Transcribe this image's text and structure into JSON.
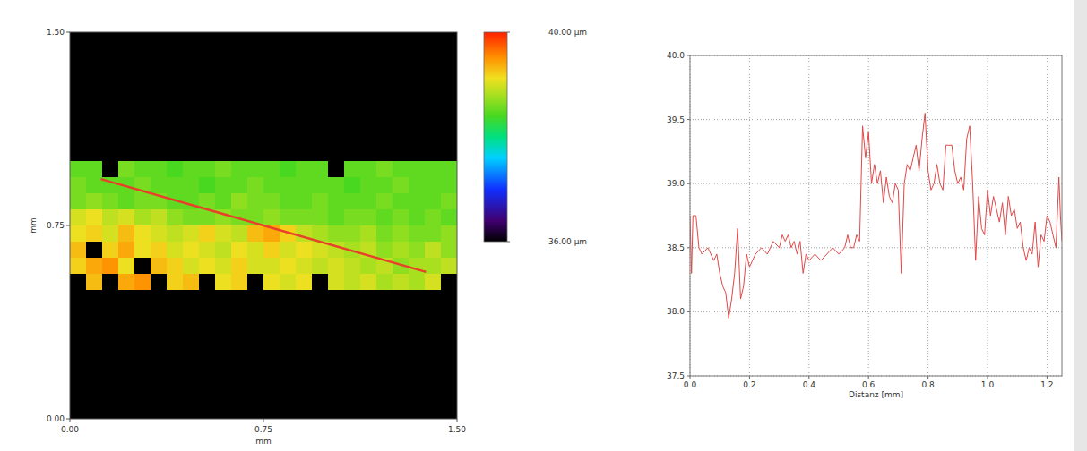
{
  "chart_data": [
    {
      "type": "heatmap",
      "xlabel": "mm",
      "ylabel": "mm",
      "xlim": [
        0,
        1.5
      ],
      "ylim": [
        0,
        1.5
      ],
      "xticks": [
        {
          "value": 0,
          "label": "0.00"
        },
        {
          "value": 0.75,
          "label": "0.75"
        },
        {
          "value": 1.5,
          "label": "1.50"
        }
      ],
      "yticks": [
        {
          "value": 0,
          "label": "0.00"
        },
        {
          "value": 0.75,
          "label": "0.75"
        },
        {
          "value": 1.5,
          "label": "1.50"
        }
      ],
      "cell_xlim": [
        0,
        1.5
      ],
      "cell_ylim": [
        1.0,
        0.5
      ],
      "cells": [
        [
          38.5,
          38.5,
          null,
          38.6,
          38.5,
          38.5,
          38.4,
          38.5,
          38.5,
          38.6,
          38.5,
          38.5,
          38.5,
          38.4,
          38.5,
          38.5,
          null,
          38.5,
          38.5,
          38.6,
          38.5,
          38.5,
          38.5,
          38.5
        ],
        [
          38.6,
          38.5,
          38.5,
          38.5,
          38.6,
          38.5,
          38.5,
          38.5,
          38.4,
          38.5,
          38.5,
          38.6,
          38.5,
          38.5,
          38.5,
          38.5,
          38.5,
          38.4,
          38.5,
          38.5,
          38.6,
          38.5,
          38.5,
          38.5
        ],
        [
          38.6,
          38.7,
          38.6,
          38.5,
          38.6,
          38.6,
          38.5,
          38.5,
          38.6,
          38.5,
          38.7,
          38.6,
          38.6,
          38.5,
          38.5,
          38.6,
          38.5,
          38.5,
          38.5,
          38.6,
          38.5,
          38.5,
          38.5,
          38.6
        ],
        [
          39.0,
          39.1,
          38.9,
          39.0,
          38.8,
          38.9,
          38.7,
          38.6,
          38.6,
          38.7,
          38.6,
          38.6,
          38.7,
          38.6,
          38.6,
          38.6,
          38.5,
          38.6,
          38.6,
          38.5,
          38.6,
          38.5,
          38.6,
          38.5
        ],
        [
          39.1,
          39.2,
          39.0,
          39.3,
          39.1,
          39.0,
          38.9,
          39.0,
          39.2,
          39.0,
          38.9,
          39.3,
          39.4,
          39.2,
          38.9,
          38.8,
          38.7,
          38.7,
          38.8,
          38.6,
          38.7,
          38.6,
          38.6,
          38.7
        ],
        [
          39.3,
          null,
          39.2,
          39.4,
          39.1,
          39.2,
          39.0,
          39.1,
          39.0,
          38.9,
          39.1,
          39.0,
          39.2,
          39.0,
          39.1,
          39.0,
          38.9,
          38.8,
          38.9,
          38.7,
          38.8,
          38.7,
          38.9,
          38.7
        ],
        [
          39.2,
          39.4,
          39.5,
          39.1,
          null,
          39.3,
          39.2,
          39.0,
          39.1,
          39.0,
          39.2,
          39.0,
          39.0,
          39.1,
          39.0,
          38.9,
          39.0,
          38.9,
          38.8,
          38.9,
          38.7,
          38.8,
          38.8,
          38.9
        ],
        [
          null,
          39.3,
          null,
          39.4,
          39.5,
          null,
          39.2,
          39.3,
          null,
          39.1,
          39.2,
          null,
          39.1,
          39.0,
          39.1,
          null,
          39.0,
          38.9,
          39.0,
          38.8,
          38.9,
          38.8,
          39.0,
          null
        ]
      ],
      "colorbar": {
        "range": [
          36,
          40
        ],
        "ticks": [
          {
            "value": 40,
            "label": "40.00 µm"
          },
          {
            "value": 36,
            "label": "36.00 µm"
          }
        ]
      },
      "profile_line": {
        "x": [
          0.12,
          1.38
        ],
        "y": [
          0.93,
          0.57
        ],
        "color": "#e8402a"
      }
    },
    {
      "type": "line",
      "xlabel": "Distanz [mm]",
      "xlim": [
        0,
        1.25
      ],
      "ylim": [
        37.5,
        40
      ],
      "xticks": [
        {
          "value": 0,
          "label": "0.0"
        },
        0.2,
        0.4,
        0.6,
        0.8,
        {
          "value": 1,
          "label": "1.0"
        },
        1.2
      ],
      "yticks": [
        37.5,
        {
          "value": 38,
          "label": "38.0"
        },
        38.5,
        {
          "value": 39,
          "label": "39.0"
        },
        39.5,
        {
          "value": 40,
          "label": "40.0"
        }
      ],
      "grid": true,
      "color": "#e04848",
      "x": [
        0,
        0.005,
        0.01,
        0.02,
        0.03,
        0.04,
        0.06,
        0.08,
        0.09,
        0.1,
        0.11,
        0.12,
        0.13,
        0.14,
        0.15,
        0.16,
        0.17,
        0.18,
        0.19,
        0.2,
        0.21,
        0.22,
        0.24,
        0.26,
        0.28,
        0.3,
        0.31,
        0.32,
        0.33,
        0.34,
        0.35,
        0.36,
        0.37,
        0.38,
        0.39,
        0.4,
        0.42,
        0.44,
        0.46,
        0.48,
        0.5,
        0.52,
        0.53,
        0.54,
        0.55,
        0.56,
        0.57,
        0.58,
        0.59,
        0.6,
        0.61,
        0.62,
        0.63,
        0.64,
        0.65,
        0.66,
        0.67,
        0.68,
        0.69,
        0.7,
        0.71,
        0.72,
        0.73,
        0.74,
        0.75,
        0.76,
        0.77,
        0.78,
        0.79,
        0.8,
        0.81,
        0.82,
        0.83,
        0.84,
        0.85,
        0.86,
        0.87,
        0.88,
        0.89,
        0.9,
        0.91,
        0.92,
        0.93,
        0.94,
        0.95,
        0.96,
        0.97,
        0.98,
        0.99,
        1.0,
        1.01,
        1.02,
        1.03,
        1.04,
        1.05,
        1.06,
        1.07,
        1.08,
        1.09,
        1.1,
        1.11,
        1.12,
        1.13,
        1.14,
        1.15,
        1.16,
        1.17,
        1.18,
        1.19,
        1.2,
        1.21,
        1.22,
        1.23,
        1.24,
        1.245,
        1.25
      ],
      "values": [
        38.75,
        38.3,
        38.75,
        38.75,
        38.5,
        38.45,
        38.5,
        38.4,
        38.45,
        38.3,
        38.2,
        38.15,
        37.95,
        38.1,
        38.3,
        38.65,
        38.1,
        38.2,
        38.45,
        38.35,
        38.4,
        38.45,
        38.5,
        38.45,
        38.55,
        38.5,
        38.6,
        38.55,
        38.6,
        38.5,
        38.55,
        38.45,
        38.55,
        38.3,
        38.45,
        38.4,
        38.45,
        38.4,
        38.45,
        38.5,
        38.45,
        38.5,
        38.6,
        38.5,
        38.5,
        38.6,
        38.55,
        39.45,
        39.2,
        39.4,
        39.0,
        39.15,
        39.0,
        39.1,
        38.85,
        39.05,
        38.9,
        38.85,
        39.0,
        38.95,
        38.3,
        39.0,
        39.15,
        39.1,
        39.2,
        39.3,
        39.1,
        39.35,
        39.55,
        39.1,
        38.95,
        39.0,
        39.15,
        39.0,
        38.95,
        39.3,
        39.3,
        39.3,
        39.1,
        39.0,
        39.05,
        38.95,
        39.35,
        39.45,
        39.0,
        38.4,
        38.9,
        38.65,
        38.6,
        38.95,
        38.75,
        38.9,
        38.8,
        38.7,
        38.85,
        38.6,
        38.9,
        38.75,
        38.8,
        38.65,
        38.7,
        38.5,
        38.4,
        38.5,
        38.45,
        38.7,
        38.35,
        38.6,
        38.55,
        38.75,
        38.7,
        38.6,
        38.5,
        39.05,
        38.75,
        38.55
      ]
    }
  ]
}
